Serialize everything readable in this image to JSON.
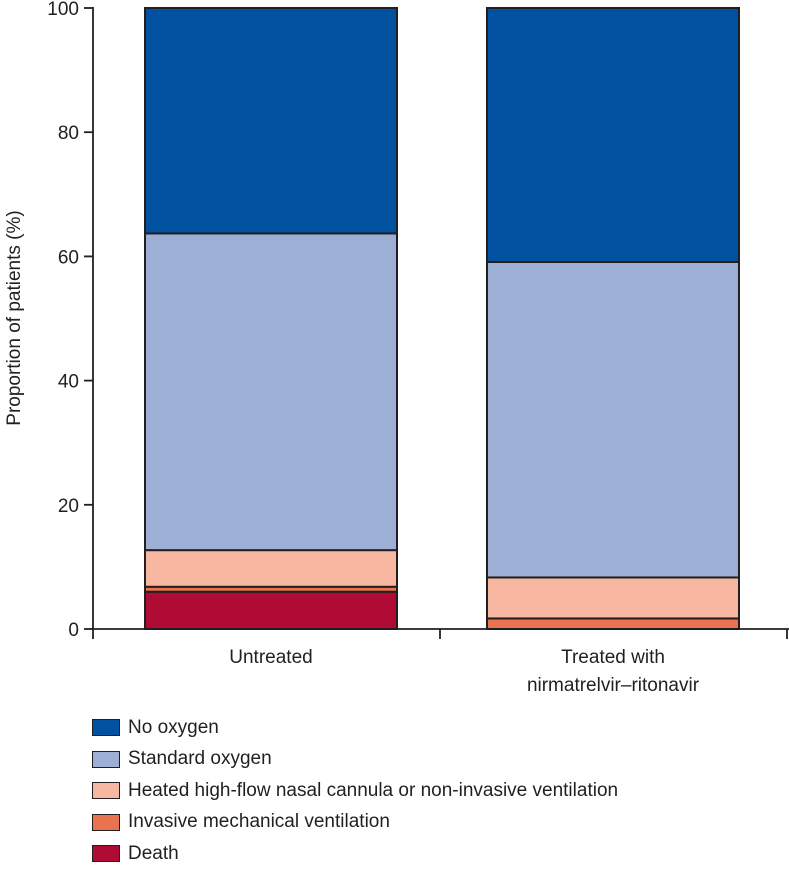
{
  "chart_data": {
    "type": "bar",
    "stacked": true,
    "ylabel": "Proportion of patients (%)",
    "ylim": [
      0,
      100
    ],
    "yticks": [
      0,
      20,
      40,
      60,
      80,
      100
    ],
    "categories": [
      {
        "name": "Untreated",
        "lines": [
          "Untreated"
        ]
      },
      {
        "name": "Treated with nirmatrelvir–ritonavir",
        "lines": [
          "Treated with",
          "nirmatrelvir–ritonavir"
        ]
      }
    ],
    "series": [
      {
        "name": "Death",
        "color": "#b00b34",
        "values": [
          6.0,
          0.0
        ]
      },
      {
        "name": "Invasive mechanical ventilation",
        "color": "#e9734e",
        "values": [
          0.8,
          1.7
        ]
      },
      {
        "name": "Heated high-flow nasal cannula or non-invasive ventilation",
        "color": "#f7b7a0",
        "values": [
          5.9,
          6.6
        ]
      },
      {
        "name": "Standard oxygen",
        "color": "#9eafd6",
        "values": [
          51.0,
          50.8
        ]
      },
      {
        "name": "No oxygen",
        "color": "#0052a0",
        "values": [
          36.3,
          40.9
        ]
      }
    ],
    "legend_order": [
      "No oxygen",
      "Standard oxygen",
      "Heated high-flow nasal cannula or non-invasive ventilation",
      "Invasive mechanical ventilation",
      "Death"
    ]
  }
}
